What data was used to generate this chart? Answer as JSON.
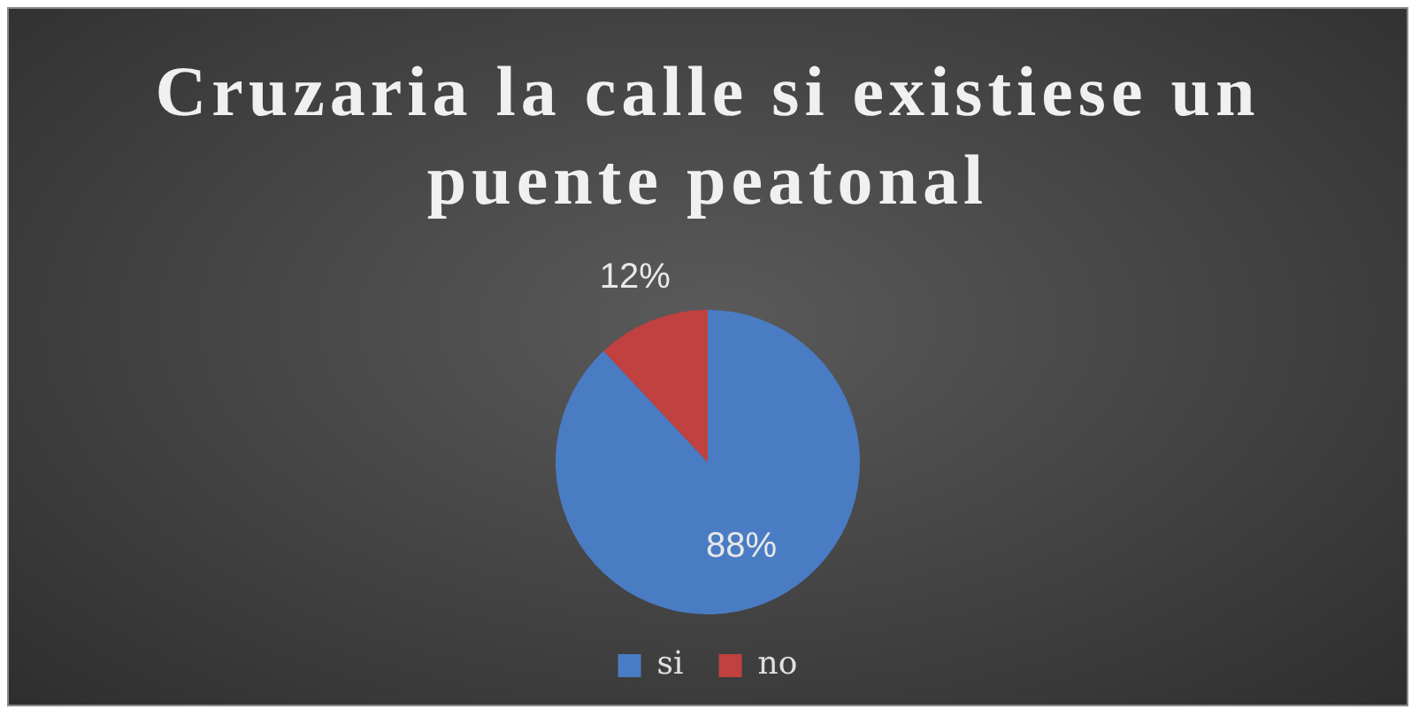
{
  "chart_data": {
    "type": "pie",
    "title": "Cruzaria la calle si existiese un puente peatonal",
    "categories": [
      "si",
      "no"
    ],
    "values": [
      88,
      12
    ],
    "colors": [
      "#4a7cc4",
      "#c0413f"
    ],
    "value_labels": [
      "88%",
      "12%"
    ],
    "legend": "bottom"
  }
}
